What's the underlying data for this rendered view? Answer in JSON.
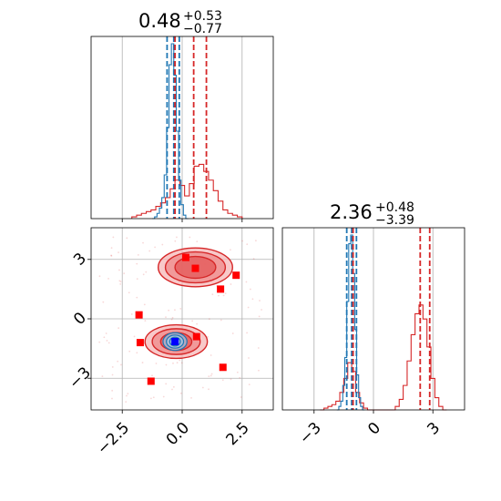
{
  "colors": {
    "red": "#d62728",
    "blue": "#1f77b4",
    "red_fill_light": "#f6b7b7",
    "red_fill_mid": "#ef8a8a",
    "red_fill_dark": "#e35757",
    "blue_fill": "#9fc6e6",
    "marker_red": "#ff0000",
    "marker_blue": "#0000ff",
    "grid": "#b0b0b0"
  },
  "chart_data": {
    "type": "corner",
    "parameters": [
      {
        "title": {
          "value": "0.48",
          "upper": "+0.53",
          "lower": "−0.77"
        },
        "range": [
          -3.8,
          3.8
        ],
        "ticks": [
          -2.5,
          0.0,
          2.5
        ],
        "tick_labels": [
          "−2.5",
          "0.0",
          "2.5"
        ],
        "quantiles_red": [
          -0.3,
          0.48,
          1.01
        ],
        "quantiles_blue": [
          -0.63,
          -0.35,
          -0.12
        ],
        "hist_blue": {
          "bins": [
            -1.2,
            -1.1,
            -1.0,
            -0.9,
            -0.8,
            -0.7,
            -0.6,
            -0.5,
            -0.4,
            -0.3,
            -0.2,
            -0.1,
            0.0,
            0.1,
            0.2
          ],
          "values": [
            0.0,
            0.01,
            0.03,
            0.06,
            0.12,
            0.25,
            0.52,
            0.88,
            1.0,
            0.82,
            0.5,
            0.22,
            0.08,
            0.02,
            0.0
          ]
        },
        "hist_red": {
          "bins": [
            -2.0,
            -1.8,
            -1.6,
            -1.4,
            -1.2,
            -1.0,
            -0.8,
            -0.6,
            -0.4,
            -0.2,
            0.0,
            0.2,
            0.4,
            0.6,
            0.8,
            1.0,
            1.2,
            1.4,
            1.6,
            1.8,
            2.0,
            2.2,
            2.4
          ],
          "values": [
            0.01,
            0.02,
            0.03,
            0.04,
            0.05,
            0.07,
            0.09,
            0.12,
            0.17,
            0.22,
            0.19,
            0.13,
            0.2,
            0.3,
            0.31,
            0.27,
            0.22,
            0.16,
            0.1,
            0.05,
            0.03,
            0.02,
            0.01
          ]
        }
      },
      {
        "title": {
          "value": "2.36",
          "upper": "+0.48",
          "lower": "−3.39"
        },
        "range": [
          -4.6,
          4.6
        ],
        "ticks": [
          -3,
          0,
          3
        ],
        "tick_labels": [
          "−3",
          "0",
          "3"
        ],
        "quantiles_red": [
          -1.03,
          2.36,
          2.84
        ],
        "quantiles_blue": [
          -1.35,
          -1.1,
          -0.86
        ],
        "hist_blue": {
          "bins": [
            -1.8,
            -1.7,
            -1.6,
            -1.5,
            -1.4,
            -1.3,
            -1.2,
            -1.1,
            -1.0,
            -0.9,
            -0.8,
            -0.7,
            -0.6,
            -0.5
          ],
          "values": [
            0.0,
            0.02,
            0.05,
            0.14,
            0.3,
            0.62,
            0.95,
            1.0,
            0.78,
            0.46,
            0.2,
            0.07,
            0.02,
            0.0
          ]
        },
        "hist_red": {
          "bins": [
            -2.6,
            -2.4,
            -2.2,
            -2.0,
            -1.8,
            -1.6,
            -1.4,
            -1.2,
            -1.0,
            -0.8,
            -0.6,
            -0.4,
            -0.2,
            0.0,
            0.2,
            0.4,
            0.6,
            0.8,
            1.0,
            1.2,
            1.4,
            1.6,
            1.8,
            2.0,
            2.2,
            2.4,
            2.6,
            2.8,
            3.0,
            3.2,
            3.4,
            3.6
          ],
          "values": [
            0.0,
            0.01,
            0.02,
            0.03,
            0.05,
            0.1,
            0.18,
            0.27,
            0.22,
            0.1,
            0.04,
            0.01,
            0.0,
            0.0,
            0.0,
            0.0,
            0.0,
            0.0,
            0.0,
            0.02,
            0.06,
            0.14,
            0.28,
            0.43,
            0.55,
            0.6,
            0.52,
            0.36,
            0.18,
            0.07,
            0.02,
            0.0
          ]
        }
      }
    ],
    "contours_red": [
      {
        "cx": 0.55,
        "cy": 2.6,
        "rx": [
          0.85,
          1.25,
          1.55
        ],
        "ry": [
          0.55,
          0.78,
          0.98
        ]
      },
      {
        "cx": -0.25,
        "cy": -1.15,
        "rx": [
          0.65,
          1.0,
          1.3
        ],
        "ry": [
          0.45,
          0.65,
          0.85
        ]
      }
    ],
    "contours_blue": [
      {
        "cx": -0.3,
        "cy": -1.15,
        "rx": [
          0.22,
          0.36,
          0.5
        ],
        "ry": [
          0.22,
          0.33,
          0.45
        ]
      }
    ],
    "markers_red": [
      [
        0.15,
        3.1
      ],
      [
        0.55,
        2.55
      ],
      [
        1.6,
        1.5
      ],
      [
        2.25,
        2.2
      ],
      [
        -1.8,
        0.2
      ],
      [
        -1.75,
        -1.2
      ],
      [
        0.6,
        -0.9
      ],
      [
        1.7,
        -2.45
      ],
      [
        -1.3,
        -3.15
      ]
    ],
    "marker_blue": [
      -0.3,
      -1.15
    ]
  }
}
